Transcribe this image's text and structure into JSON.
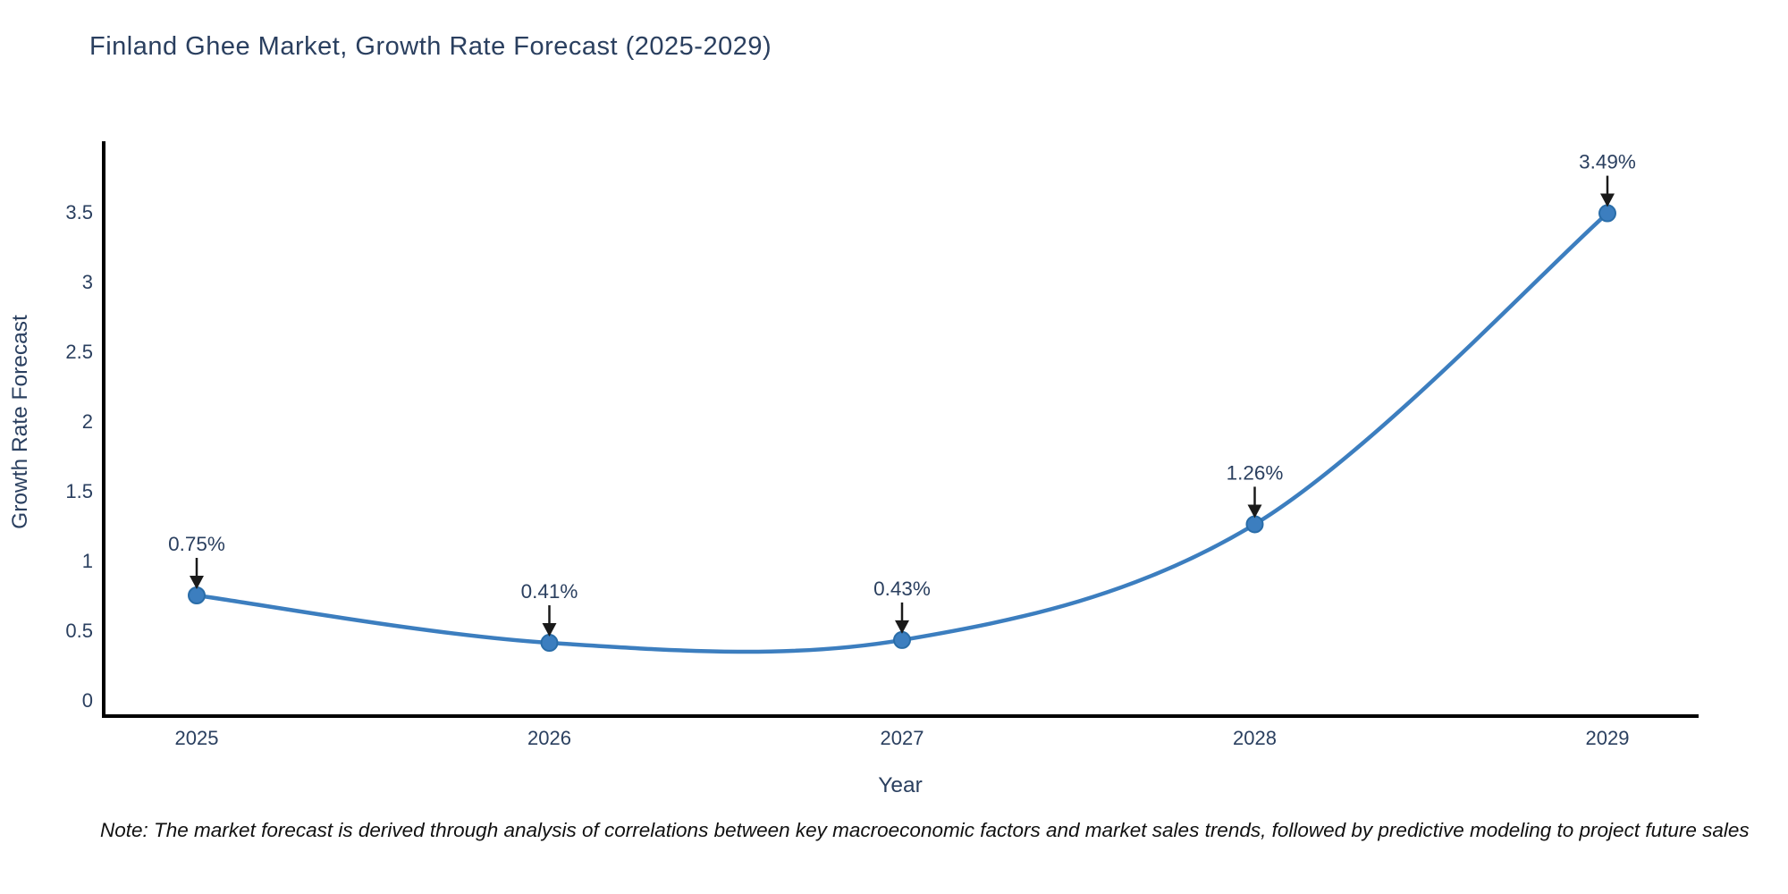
{
  "title": "Finland Ghee Market, Growth Rate Forecast (2025-2029)",
  "note": "Note: The market forecast is derived through analysis of correlations between key macroeconomic factors and market sales trends, followed by predictive modeling to project future sales",
  "colors": {
    "line": "#3c7ebf",
    "marker_fill": "#3c7ebf",
    "marker_border": "#2a6da8",
    "text": "#2a3f5f",
    "axis": "#000000",
    "arrow": "#1a1a1a",
    "background": "#ffffff"
  },
  "chart_data": {
    "type": "line",
    "title": "Finland Ghee Market, Growth Rate Forecast (2025-2029)",
    "x": [
      2025,
      2026,
      2027,
      2028,
      2029
    ],
    "y": [
      0.75,
      0.41,
      0.43,
      1.26,
      3.49
    ],
    "series": [
      {
        "name": "Growth Rate Forecast",
        "values": [
          0.75,
          0.41,
          0.43,
          1.26,
          3.49
        ]
      }
    ],
    "point_labels": [
      "0.75%",
      "0.41%",
      "0.43%",
      "1.26%",
      "3.49%"
    ],
    "xlabel": "Year",
    "ylabel": "Growth Rate Forecast",
    "xtick_labels": [
      "2025",
      "2026",
      "2027",
      "2028",
      "2029"
    ],
    "yticks": [
      0,
      0.5,
      1,
      1.5,
      2,
      2.5,
      3,
      3.5
    ],
    "ytick_labels": [
      "0",
      "0.5",
      "1",
      "1.5",
      "2",
      "2.5",
      "3",
      "3.5"
    ],
    "ylim": [
      -0.12,
      3.75
    ],
    "line_shape": "spline",
    "grid": false,
    "legend_position": "none",
    "annotations": "black arrows pointing down at each data point with percentage labels above"
  }
}
